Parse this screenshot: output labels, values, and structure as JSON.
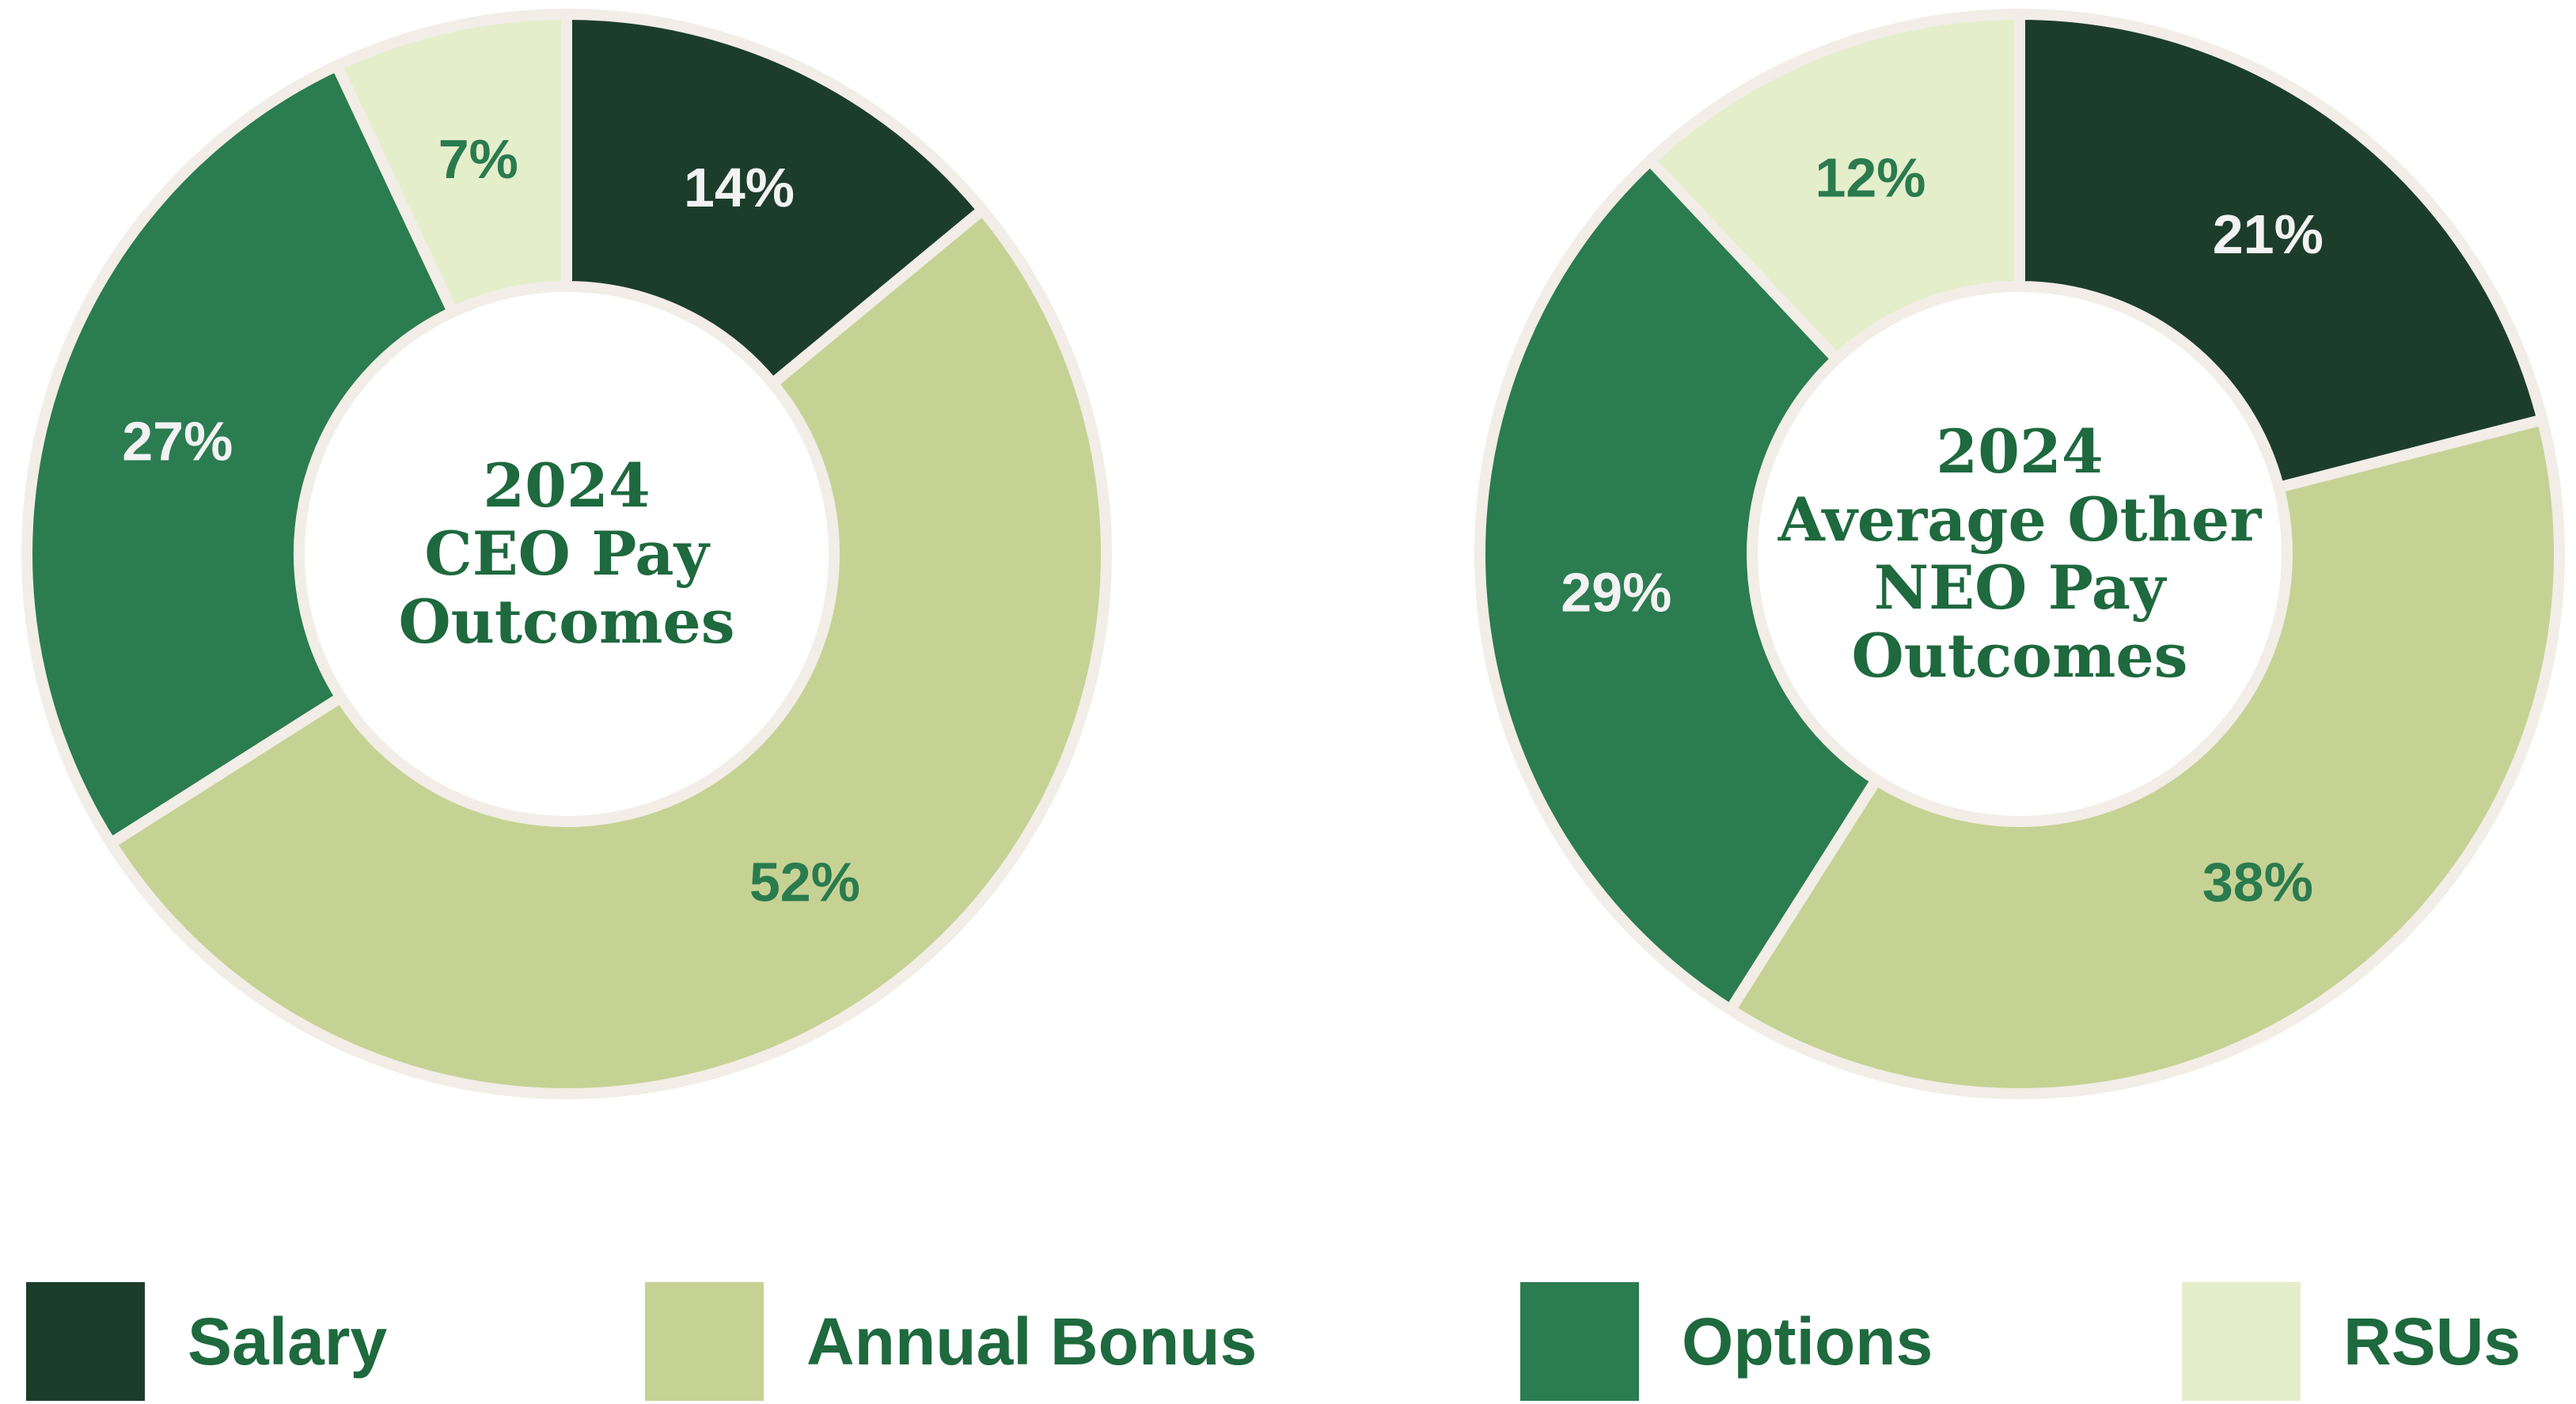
{
  "page": {
    "background": "#ffffff"
  },
  "colors": {
    "salary": "#1d3d2b",
    "annual_bonus": "#c6d294",
    "options": "#2b7c50",
    "rsus": "#e4eecb",
    "separator": "#f2ede6",
    "title_text": "#1e693d",
    "legend_text": "#1e693d",
    "label_on_dark": "#f2f2f2",
    "label_on_light": "#2a7b4e"
  },
  "chart_data": [
    {
      "type": "pie",
      "subtype": "donut",
      "title": "2024 CEO Pay Outcomes",
      "title_lines": [
        "2024",
        "CEO Pay",
        "Outcomes"
      ],
      "start_angle_deg": 0,
      "direction": "clockwise",
      "categories": [
        "Salary",
        "Annual Bonus",
        "Options",
        "RSUs"
      ],
      "values": [
        14,
        52,
        27,
        7
      ],
      "slices": [
        {
          "category": "Salary",
          "value": 14,
          "label": "14%",
          "color_key": "salary",
          "label_color_key": "label_on_dark"
        },
        {
          "category": "Annual Bonus",
          "value": 52,
          "label": "52%",
          "color_key": "annual_bonus",
          "label_color_key": "label_on_light"
        },
        {
          "category": "Options",
          "value": 27,
          "label": "27%",
          "color_key": "options",
          "label_color_key": "label_on_dark"
        },
        {
          "category": "RSUs",
          "value": 7,
          "label": "7%",
          "color_key": "rsus",
          "label_color_key": "label_on_light"
        }
      ]
    },
    {
      "type": "pie",
      "subtype": "donut",
      "title": "2024 Average Other NEO Pay Outcomes",
      "title_lines": [
        "2024",
        "Average Other",
        "NEO Pay",
        "Outcomes"
      ],
      "start_angle_deg": 0,
      "direction": "clockwise",
      "categories": [
        "Salary",
        "Annual Bonus",
        "Options",
        "RSUs"
      ],
      "values": [
        21,
        38,
        29,
        12
      ],
      "slices": [
        {
          "category": "Salary",
          "value": 21,
          "label": "21%",
          "color_key": "salary",
          "label_color_key": "label_on_dark"
        },
        {
          "category": "Annual Bonus",
          "value": 38,
          "label": "38%",
          "color_key": "annual_bonus",
          "label_color_key": "label_on_light"
        },
        {
          "category": "Options",
          "value": 29,
          "label": "29%",
          "color_key": "options",
          "label_color_key": "label_on_dark"
        },
        {
          "category": "RSUs",
          "value": 12,
          "label": "12%",
          "color_key": "rsus",
          "label_color_key": "label_on_light"
        }
      ]
    }
  ],
  "legend": {
    "items": [
      {
        "label": "Salary",
        "color_key": "salary"
      },
      {
        "label": "Annual Bonus",
        "color_key": "annual_bonus"
      },
      {
        "label": "Options",
        "color_key": "options"
      },
      {
        "label": "RSUs",
        "color_key": "rsus"
      }
    ]
  }
}
